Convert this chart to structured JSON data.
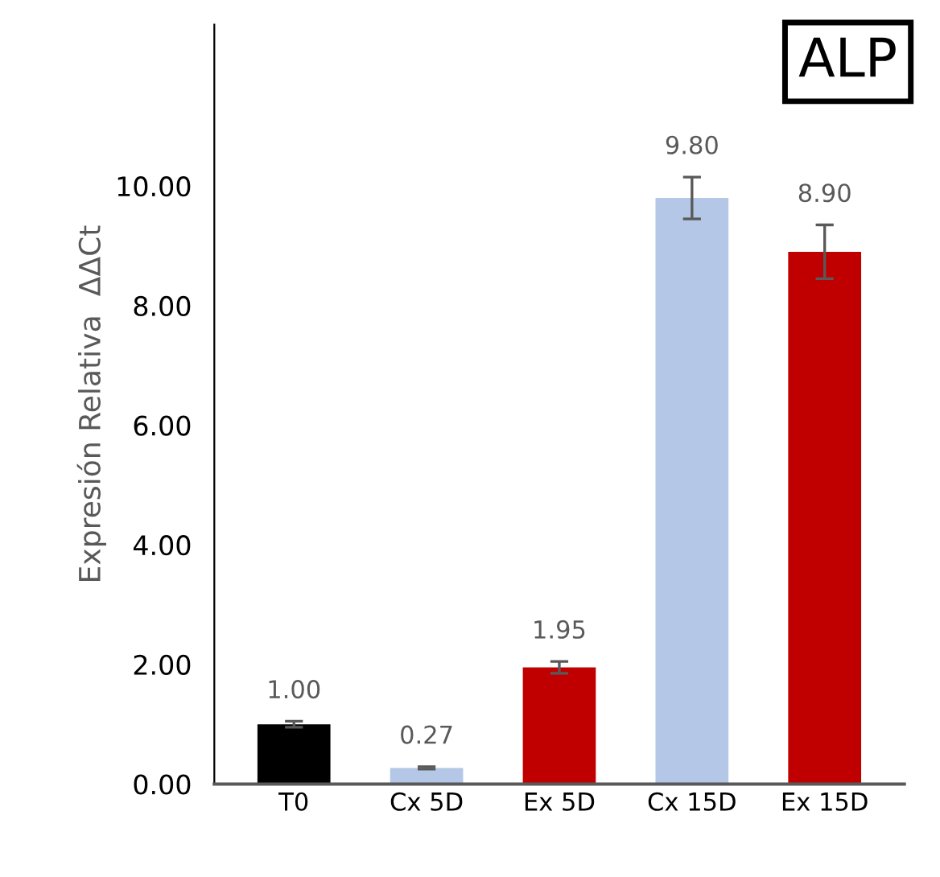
{
  "chart_data": {
    "type": "bar",
    "ylabel": "Expresión Relativa  ΔΔCt",
    "annotations": [
      "ALP"
    ],
    "categories": [
      "T0",
      "Cx 5D",
      "Ex 5D",
      "Cx 15D",
      "Ex 15D"
    ],
    "values": [
      1.0,
      0.27,
      1.95,
      9.8,
      8.9
    ],
    "colors": [
      "#000000",
      "#b4c7e7",
      "#c00000",
      "#b4c7e7",
      "#c00000"
    ],
    "errors": [
      0.05,
      0.02,
      0.1,
      0.35,
      0.45
    ],
    "value_labels": [
      "1.00",
      "0.27",
      "1.95",
      "9.80",
      "8.90"
    ],
    "ylim": [
      0,
      12.7
    ],
    "yticks": [
      {
        "value": 0,
        "label": "0.00"
      },
      {
        "value": 2,
        "label": "2.00"
      },
      {
        "value": 4,
        "label": "4.00"
      },
      {
        "value": 6,
        "label": "6.00"
      },
      {
        "value": 8,
        "label": "8.00"
      },
      {
        "value": 10,
        "label": "10.00"
      }
    ],
    "grid": false
  }
}
